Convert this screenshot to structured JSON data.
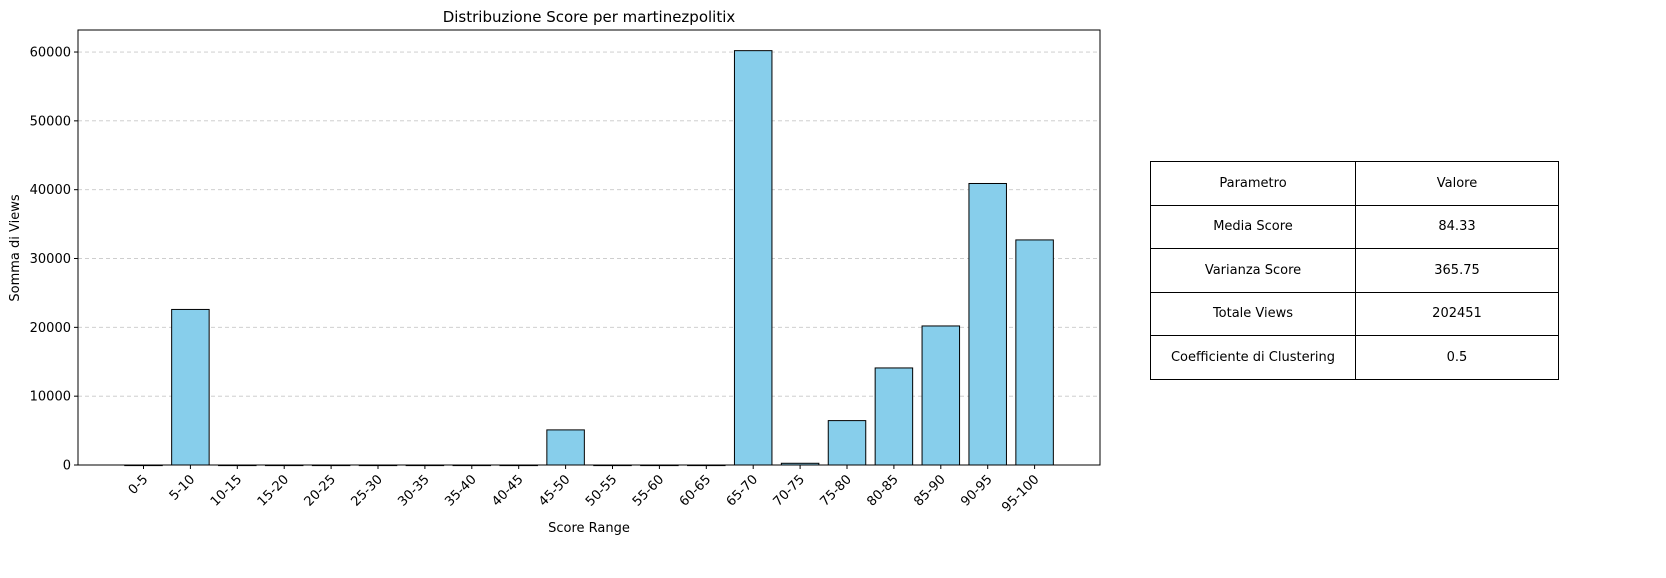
{
  "chart_data": {
    "type": "bar",
    "title": "Distribuzione Score per martinezpolitix",
    "xlabel": "Score Range",
    "ylabel": "Somma di Views",
    "categories": [
      "0-5",
      "5-10",
      "10-15",
      "15-20",
      "20-25",
      "25-30",
      "30-35",
      "35-40",
      "40-45",
      "45-50",
      "50-55",
      "55-60",
      "60-65",
      "65-70",
      "70-75",
      "75-80",
      "80-85",
      "85-90",
      "90-95",
      "95-100"
    ],
    "values": [
      0,
      22600,
      0,
      0,
      0,
      0,
      0,
      0,
      0,
      5100,
      0,
      0,
      0,
      60200,
      250,
      6450,
      14100,
      20200,
      40900,
      32700
    ],
    "ylim": [
      0,
      63200
    ],
    "yticks": [
      0,
      10000,
      20000,
      30000,
      40000,
      50000,
      60000
    ],
    "grid": "y-dashed",
    "bar_color": "#87ceeb",
    "edge_color": "#000000"
  },
  "table": {
    "header": [
      "Parametro",
      "Valore"
    ],
    "rows": [
      [
        "Media Score",
        "84.33"
      ],
      [
        "Varianza Score",
        "365.75"
      ],
      [
        "Totale Views",
        "202451"
      ],
      [
        "Coefficiente di Clustering",
        "0.5"
      ]
    ]
  }
}
